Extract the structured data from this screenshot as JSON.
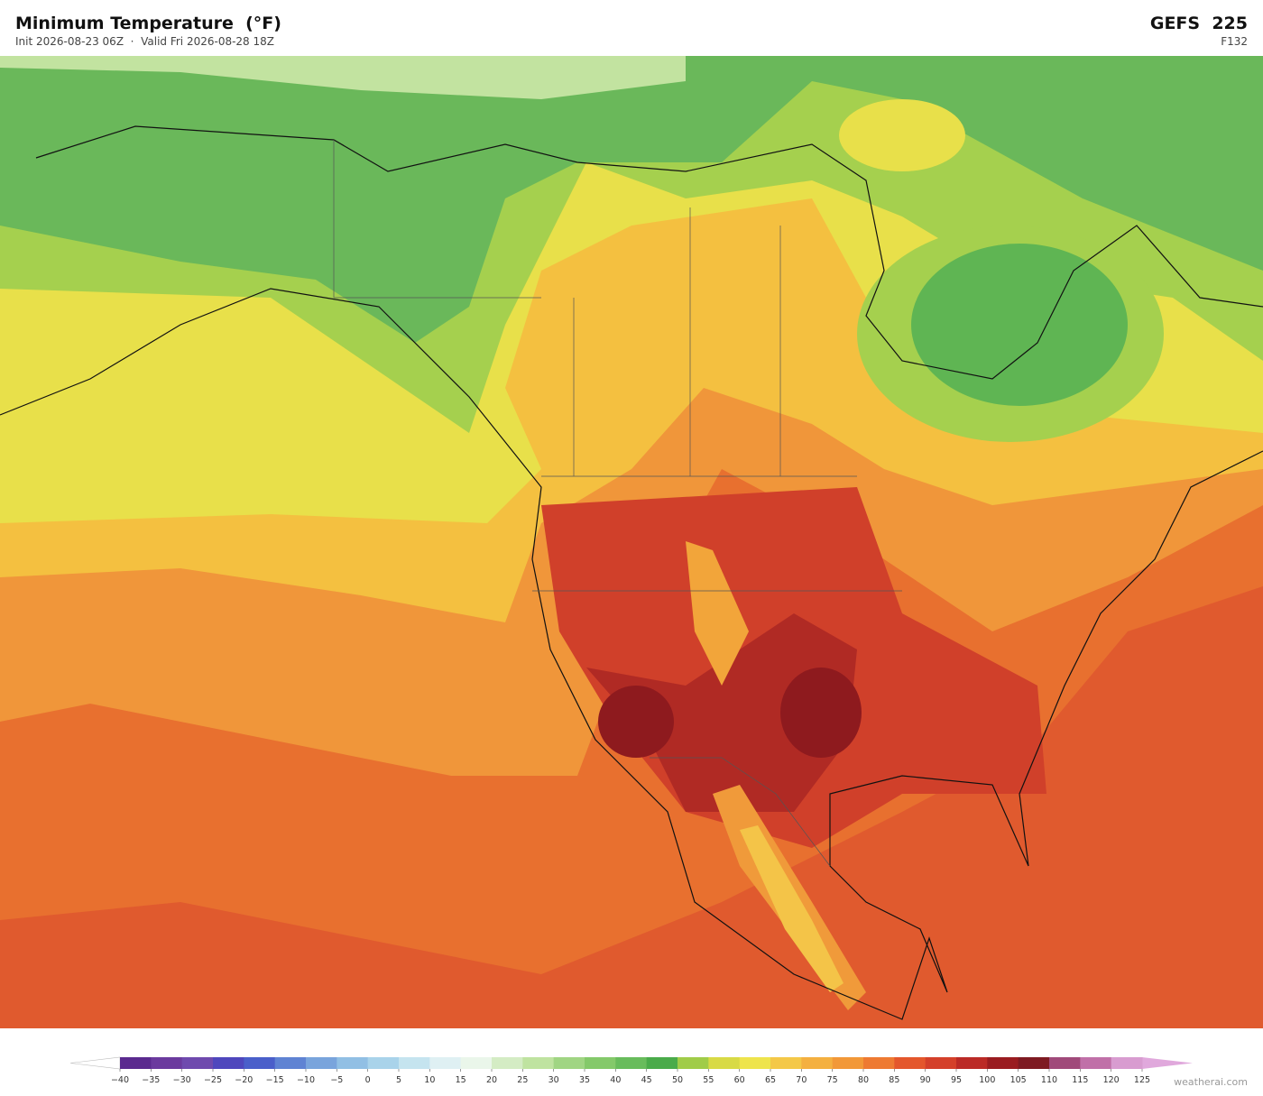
{
  "header": {
    "title": "Minimum Temperature  (°F)",
    "subtitle": "Init 2026-08-23 06Z  ·  Valid Fri 2026-08-28 18Z",
    "model": "GEFS  225",
    "forecast_hour": "F132"
  },
  "colorbar": {
    "ticks": [
      "−40",
      "−35",
      "−30",
      "−25",
      "−20",
      "−15",
      "−10",
      "−5",
      "0",
      "5",
      "10",
      "15",
      "20",
      "25",
      "30",
      "35",
      "40",
      "45",
      "50",
      "55",
      "60",
      "65",
      "70",
      "75",
      "80",
      "85",
      "90",
      "95",
      "100",
      "105",
      "110",
      "115",
      "120",
      "125"
    ],
    "colors": [
      "#5b2a8f",
      "#6b3a9e",
      "#6f4aae",
      "#4f47bd",
      "#4a5fca",
      "#5f83d3",
      "#79a4dc",
      "#91bfe4",
      "#a9d3ea",
      "#c5e4ef",
      "#dff0f3",
      "#eaf6ea",
      "#d4ecc4",
      "#bfe3a0",
      "#a0d583",
      "#84c96a",
      "#68bc5c",
      "#4aab4a",
      "#a0cc48",
      "#d8da45",
      "#eee44c",
      "#f4c848",
      "#f4b040",
      "#f29838",
      "#ee7a32",
      "#e4572c",
      "#d4402a",
      "#bb2a26",
      "#9a1c20",
      "#7e1a22",
      "#a04a7a",
      "#c070a8",
      "#d89cd0"
    ]
  },
  "credit": "weatherai.com"
}
